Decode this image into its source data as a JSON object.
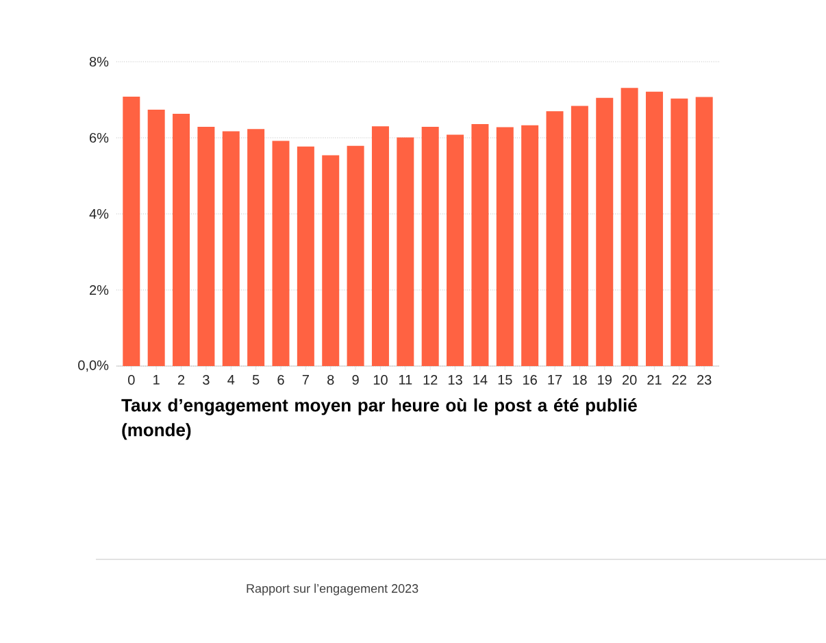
{
  "chart_data": {
    "type": "bar",
    "title": "Taux d’engagement moyen par heure où le post a été publié (monde)",
    "categories": [
      "0",
      "1",
      "2",
      "3",
      "4",
      "5",
      "6",
      "7",
      "8",
      "9",
      "10",
      "11",
      "12",
      "13",
      "14",
      "15",
      "16",
      "17",
      "18",
      "19",
      "20",
      "21",
      "22",
      "23"
    ],
    "values": [
      7.08,
      6.74,
      6.63,
      6.29,
      6.17,
      6.23,
      5.92,
      5.77,
      5.54,
      5.79,
      6.3,
      6.01,
      6.29,
      6.08,
      6.36,
      6.28,
      6.33,
      6.7,
      6.84,
      7.05,
      7.31,
      7.21,
      7.03,
      7.07
    ],
    "color": "#ff6242",
    "ylim": [
      0,
      8
    ],
    "yticks": [
      {
        "value": 0,
        "label": "0,0%"
      },
      {
        "value": 2,
        "label": "2%"
      },
      {
        "value": 4,
        "label": "4%"
      },
      {
        "value": 6,
        "label": "6%"
      },
      {
        "value": 8,
        "label": "8%"
      }
    ],
    "grid": "y",
    "annotations": [
      "Rapport sur l’engagement 2023"
    ]
  }
}
